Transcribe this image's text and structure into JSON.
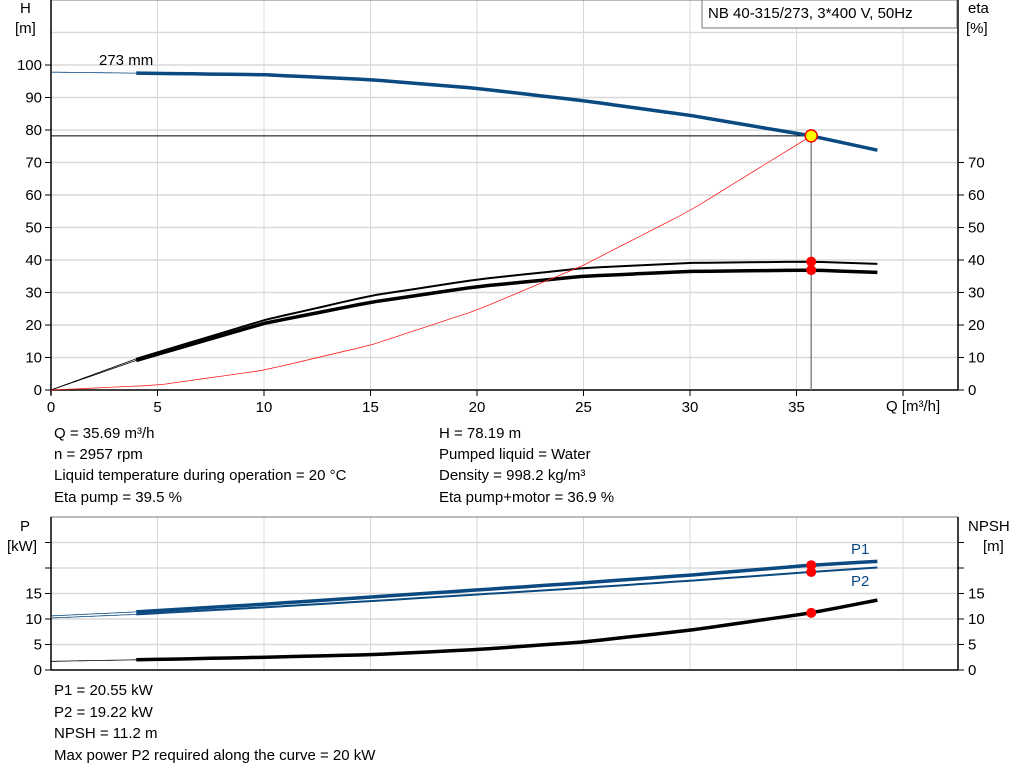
{
  "chart_data": [
    {
      "type": "line",
      "title": "NB 40-315/273, 3*400 V, 50Hz",
      "xlabel": "Q [m³/h]",
      "ylabel_left": [
        "H",
        "[m]"
      ],
      "ylabel_right": [
        "eta",
        "[%]"
      ],
      "xlim": [
        0,
        42.5
      ],
      "ylim": [
        0,
        120
      ],
      "x_ticks": [
        0,
        5,
        10,
        15,
        20,
        25,
        30,
        35
      ],
      "y_ticks_left": [
        0,
        10,
        20,
        30,
        40,
        50,
        60,
        70,
        80,
        90,
        100
      ],
      "y_ticks_right": [
        0,
        10,
        20,
        30,
        40,
        50,
        60,
        70
      ],
      "grid": true,
      "annotation": "273 mm",
      "operating_point": {
        "Q": 35.69,
        "H": 78.19,
        "eta_pump": 39.5,
        "eta_pump_motor": 36.9
      },
      "series": [
        {
          "key": "H",
          "color": "#0a4a80",
          "x": [
            0,
            4,
            10,
            15,
            20,
            25,
            30,
            35.69,
            38.8
          ],
          "y": [
            97.8,
            97.5,
            97,
            95.5,
            92.8,
            89,
            84.5,
            78.19,
            73.8
          ]
        },
        {
          "key": "eta_pump",
          "color": "#000000",
          "x": [
            0,
            4,
            10,
            15,
            20,
            25,
            30,
            35.69,
            38.8
          ],
          "y": [
            0,
            9.6,
            21.5,
            29,
            34,
            37.5,
            39.1,
            39.5,
            38.8
          ]
        },
        {
          "key": "eta_pump_motor",
          "color": "#000000",
          "x": [
            0,
            4,
            10,
            15,
            20,
            25,
            30,
            35.69,
            38.8
          ],
          "y": [
            0,
            9.1,
            20.5,
            27,
            31.8,
            35,
            36.5,
            36.9,
            36.2
          ]
        },
        {
          "key": "system",
          "color": "#ff2020",
          "x": [
            0,
            5,
            10,
            15,
            20,
            25,
            30,
            35.69
          ],
          "y": [
            0,
            1.5,
            6.1,
            13.8,
            24.6,
            38.4,
            55.2,
            78.19
          ]
        }
      ]
    },
    {
      "type": "line",
      "ylabel_left": [
        "P",
        "[kW]"
      ],
      "ylabel_right": [
        "NPSH",
        "[m]"
      ],
      "xlim": [
        0,
        42.5
      ],
      "ylim": [
        0,
        30
      ],
      "y_ticks_left": [
        0,
        5,
        10,
        15
      ],
      "y_ticks_right": [
        0,
        5,
        10,
        15
      ],
      "grid": true,
      "operating_point": {
        "Q": 35.69,
        "P1": 20.55,
        "P2": 19.22,
        "NPSH": 11.2
      },
      "series": [
        {
          "name": "P1",
          "color": "#0a4a80",
          "x": [
            0,
            4,
            10,
            15,
            20,
            25,
            30,
            35.69,
            38.8
          ],
          "y": [
            10.6,
            11.4,
            12.9,
            14.3,
            15.7,
            17.1,
            18.6,
            20.55,
            21.3
          ]
        },
        {
          "name": "P2",
          "color": "#0a4a80",
          "x": [
            0,
            4,
            10,
            15,
            20,
            25,
            30,
            35.69,
            38.8
          ],
          "y": [
            10.2,
            10.9,
            12.3,
            13.5,
            14.8,
            16.1,
            17.5,
            19.22,
            20.1
          ]
        },
        {
          "key": "NPSH",
          "color": "#000000",
          "x": [
            0,
            4,
            10,
            15,
            20,
            25,
            30,
            35.69,
            38.8
          ],
          "y": [
            1.7,
            2.0,
            2.5,
            3.0,
            4.0,
            5.5,
            7.8,
            11.2,
            13.7
          ]
        }
      ]
    }
  ],
  "info_top": {
    "left": [
      "Q = 35.69 m³/h",
      "n = 2957 rpm",
      "Liquid temperature during operation = 20 °C",
      "Eta pump = 39.5 %"
    ],
    "right": [
      "H = 78.19 m",
      "Pumped liquid = Water",
      "Density = 998.2 kg/m³",
      "Eta pump+motor = 36.9 %"
    ]
  },
  "info_bottom": [
    "P1 = 20.55 kW",
    "P2 = 19.22 kW",
    "NPSH = 11.2 m",
    "Max power P2 required along the curve = 20 kW"
  ]
}
